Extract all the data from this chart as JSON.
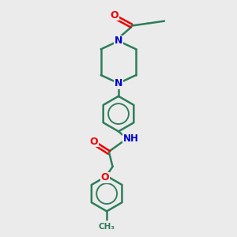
{
  "background_color": "#ebebeb",
  "bond_color": "#2d7d5a",
  "bond_width": 1.8,
  "N_color": "#0000cc",
  "O_color": "#ee0000",
  "figsize": [
    3.0,
    3.0
  ],
  "dpi": 100,
  "xlim": [
    0,
    10
  ],
  "ylim": [
    0,
    10
  ]
}
